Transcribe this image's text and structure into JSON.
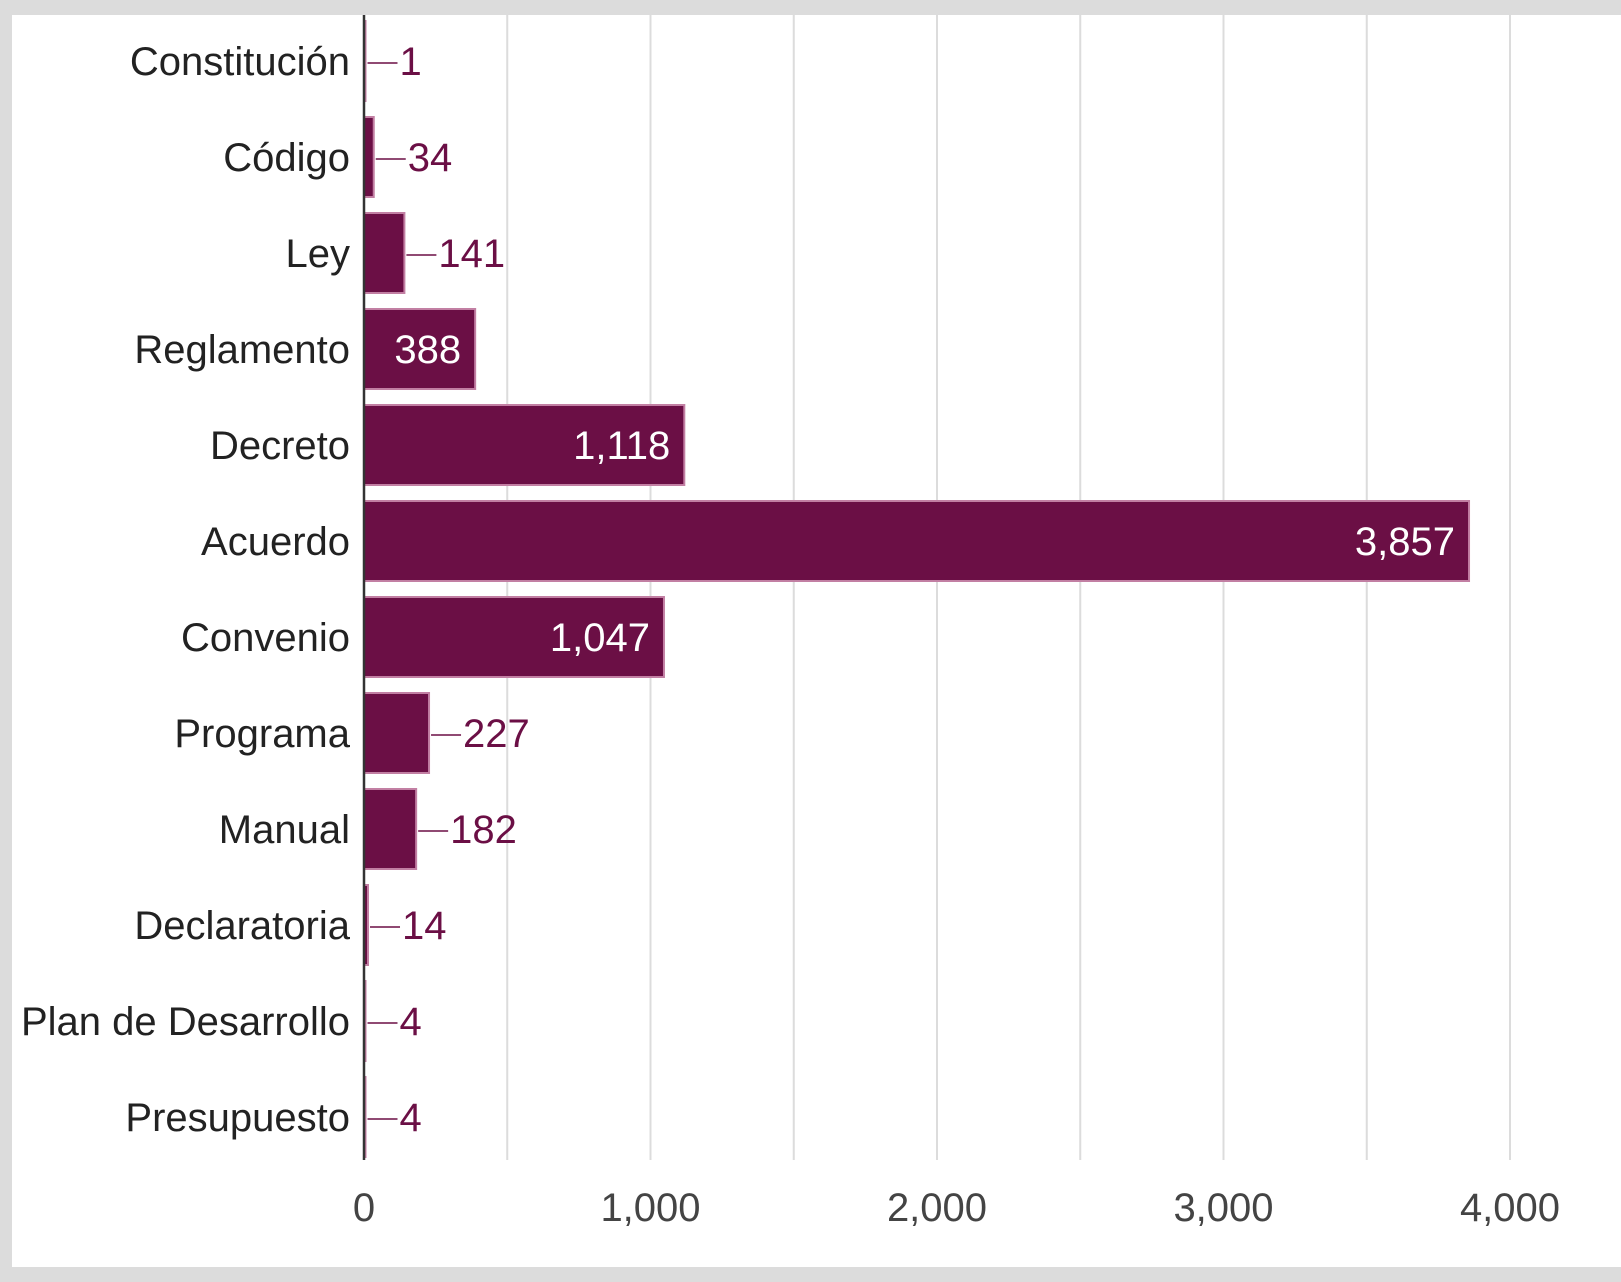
{
  "chart_data": {
    "type": "bar",
    "orientation": "horizontal",
    "categories": [
      "Constitución",
      "Código",
      "Ley",
      "Reglamento",
      "Decreto",
      "Acuerdo",
      "Convenio",
      "Programa",
      "Manual",
      "Declaratoria",
      "Plan de Desarrollo",
      "Presupuesto"
    ],
    "values": [
      1,
      34,
      141,
      388,
      1118,
      3857,
      1047,
      227,
      182,
      14,
      4,
      4
    ],
    "value_labels": [
      "1",
      "34",
      "141",
      "388",
      "1,118",
      "3,857",
      "1,047",
      "227",
      "182",
      "14",
      "4",
      "4"
    ],
    "title": "",
    "xlabel": "",
    "ylabel": "",
    "xlim": [
      0,
      4000
    ],
    "x_ticks": [
      0,
      1000,
      2000,
      3000,
      4000
    ],
    "x_tick_labels": [
      "0",
      "1,000",
      "2,000",
      "3,000",
      "4,000"
    ],
    "grid": true,
    "legend": "none",
    "bar_color": "#6b0f45",
    "bar_edge_color": "#c27fa3",
    "inside_label_color": "#ffffff",
    "outside_label_color": "#6b0f45"
  }
}
